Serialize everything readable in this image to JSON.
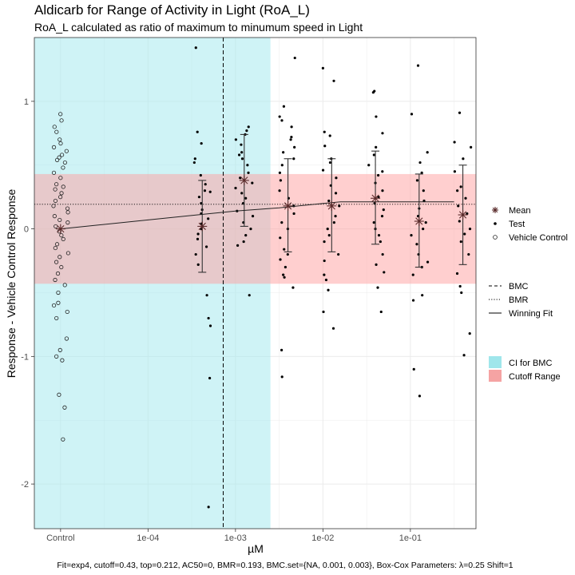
{
  "chart_data": {
    "type": "scatter",
    "title": "Aldicarb for Range of Activity in Light (RoA_L)",
    "subtitle": "RoA_L calculated as ratio of maximum to minumum speed in Light",
    "xlabel": "µM",
    "ylabel": "Response - Vehicle Control Response",
    "caption": "Fit=exp4, cutoff=0.43, top=0.212, AC50=0, BMR=0.193, BMC.set={NA, 0.001, 0.003}, Box-Cox Parameters: λ=0.25 Shift=1",
    "x_scale": "log10",
    "xlim_log10": [
      -5.3,
      -0.25
    ],
    "ylim": [
      -2.35,
      1.5
    ],
    "x_ticks": [
      {
        "label": "Control",
        "log10": -5.0
      },
      {
        "label": "1e-04",
        "log10": -4.0
      },
      {
        "label": "1e-03",
        "log10": -3.0
      },
      {
        "label": "1e-02",
        "log10": -2.0
      },
      {
        "label": "1e-01",
        "log10": -1.0
      }
    ],
    "y_ticks": [
      {
        "label": "-2",
        "value": -2
      },
      {
        "label": "-1",
        "value": -1
      },
      {
        "label": "0",
        "value": 0
      },
      {
        "label": "1",
        "value": 1
      }
    ],
    "ci_bmc": {
      "from_log10": -5.3,
      "to_log10": -2.6
    },
    "cutoff_range": {
      "lower": -0.43,
      "upper": 0.43
    },
    "bmc_log10": -3.14,
    "bmr": 0.193,
    "winning_fit": {
      "x_log10": [
        -5.0,
        -4.0,
        -3.0,
        -2.5,
        -2.0,
        -1.8,
        -1.5,
        -1.0,
        -0.5
      ],
      "y": [
        0.0,
        0.07,
        0.14,
        0.165,
        0.2,
        0.212,
        0.212,
        0.212,
        0.212
      ]
    },
    "vehicle_control": {
      "x_log10": -5.0,
      "values": [
        0.9,
        0.85,
        0.8,
        0.76,
        0.7,
        0.67,
        0.64,
        0.61,
        0.58,
        0.56,
        0.54,
        0.52,
        0.48,
        0.44,
        0.4,
        0.35,
        0.33,
        0.31,
        0.28,
        0.25,
        0.22,
        0.18,
        0.16,
        0.13,
        0.1,
        0.07,
        0.05,
        0.02,
        -0.02,
        -0.05,
        -0.08,
        -0.12,
        -0.15,
        -0.19,
        -0.22,
        -0.26,
        -0.3,
        -0.35,
        -0.4,
        -0.44,
        -0.5,
        -0.58,
        -0.6,
        -0.65,
        -0.7,
        -0.86,
        -0.95,
        -1.0,
        -1.03,
        -1.3,
        -1.4,
        -1.65
      ]
    },
    "test_groups": [
      {
        "log10": -3.38,
        "mean": 0.02,
        "err_low": -0.34,
        "err_high": 0.38,
        "values": [
          1.42,
          0.76,
          0.67,
          0.55,
          0.52,
          0.42,
          0.35,
          0.3,
          0.29,
          0.25,
          0.2,
          0.15,
          0.12,
          0.08,
          0.04,
          0.0,
          -0.04,
          -0.08,
          -0.14,
          -0.2,
          -0.28,
          -0.52,
          -0.7,
          -0.76,
          -1.17,
          -2.18
        ]
      },
      {
        "log10": -2.9,
        "mean": 0.38,
        "err_low": 0.02,
        "err_high": 0.74,
        "values": [
          0.8,
          0.77,
          0.74,
          0.7,
          0.66,
          0.6,
          0.58,
          0.55,
          0.5,
          0.44,
          0.4,
          0.36,
          0.32,
          0.28,
          0.24,
          0.2,
          0.14,
          0.1,
          0.05,
          0.0,
          -0.05,
          -0.1,
          -0.13,
          -0.52
        ]
      },
      {
        "log10": -2.4,
        "mean": 0.18,
        "err_low": -0.18,
        "err_high": 0.55,
        "values": [
          1.34,
          0.96,
          0.88,
          0.85,
          0.8,
          0.72,
          0.7,
          0.64,
          0.6,
          0.55,
          0.5,
          0.44,
          0.38,
          0.3,
          0.24,
          0.18,
          0.12,
          0.05,
          0.0,
          -0.07,
          -0.16,
          -0.2,
          -0.24,
          -0.3,
          -0.36,
          -0.38,
          -0.46,
          -0.95,
          -1.16
        ]
      },
      {
        "log10": -1.9,
        "mean": 0.18,
        "err_low": -0.18,
        "err_high": 0.55,
        "values": [
          1.26,
          1.16,
          0.76,
          0.73,
          0.65,
          0.55,
          0.52,
          0.46,
          0.4,
          0.34,
          0.28,
          0.22,
          0.18,
          0.1,
          0.05,
          0.0,
          -0.05,
          -0.1,
          -0.2,
          -0.25,
          -0.36,
          -0.4,
          -0.48,
          -0.65,
          -0.78
        ]
      },
      {
        "log10": -1.4,
        "mean": 0.24,
        "err_low": -0.12,
        "err_high": 0.61,
        "values": [
          1.08,
          1.07,
          0.88,
          0.75,
          0.64,
          0.58,
          0.5,
          0.45,
          0.42,
          0.36,
          0.3,
          0.25,
          0.2,
          0.15,
          0.1,
          0.05,
          0.0,
          -0.05,
          -0.1,
          -0.2,
          -0.28,
          -0.34,
          -0.46,
          -0.65
        ]
      },
      {
        "log10": -0.9,
        "mean": 0.06,
        "err_low": -0.3,
        "err_high": 0.43,
        "values": [
          1.28,
          0.9,
          0.6,
          0.52,
          0.44,
          0.38,
          0.3,
          0.22,
          0.16,
          0.1,
          0.05,
          0.0,
          -0.05,
          -0.12,
          -0.2,
          -0.26,
          -0.3,
          -0.36,
          -0.52,
          -0.56,
          -1.1,
          -1.31
        ]
      },
      {
        "log10": -0.4,
        "mean": 0.11,
        "err_low": -0.28,
        "err_high": 0.5,
        "values": [
          0.91,
          0.68,
          0.64,
          0.55,
          0.45,
          0.33,
          0.3,
          0.24,
          0.18,
          0.12,
          0.06,
          0.0,
          -0.04,
          -0.1,
          -0.2,
          -0.35,
          -0.45,
          -0.5,
          -0.82,
          -0.99
        ]
      }
    ],
    "legends": {
      "points": [
        "Mean",
        "Test",
        "Vehicle Control"
      ],
      "lines": [
        "BMC",
        "BMR",
        "Winning Fit"
      ],
      "fills": [
        {
          "label": "CI for BMC",
          "color": "#9fe6eb"
        },
        {
          "label": "Cutoff Range",
          "color": "#f5a3a3"
        }
      ]
    },
    "colors": {
      "ci_band": "#a8eaee",
      "cutoff_band": "#ff9f9f",
      "grid": "#ebebeb",
      "points": "#000000"
    }
  }
}
